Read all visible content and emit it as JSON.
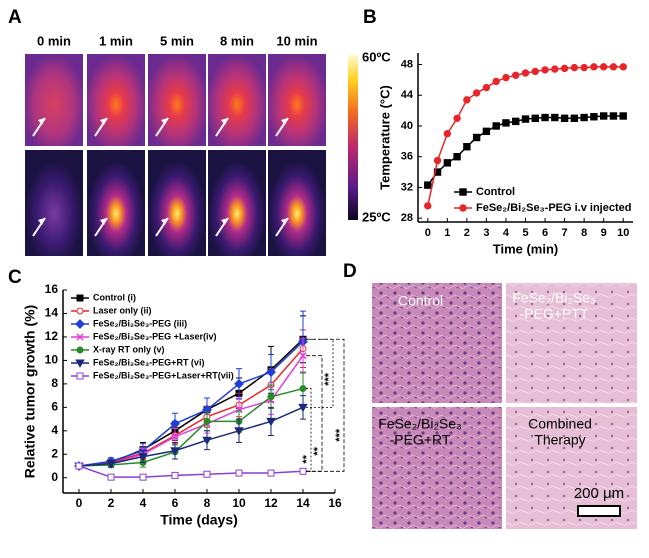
{
  "panel_labels": [
    "A",
    "B",
    "C",
    "D"
  ],
  "thermal": {
    "times": [
      "0 min",
      "1 min",
      "5 min",
      "8 min",
      "10 min"
    ],
    "scale_max": "60ºC",
    "scale_min": "25ºC"
  },
  "chart_data": [
    {
      "type": "line",
      "xlabel": "Time (min)",
      "ylabel": "Temperature (°C)",
      "x": [
        0,
        0.5,
        1,
        1.5,
        2,
        2.5,
        3,
        3.5,
        4,
        4.5,
        5,
        5.5,
        6,
        6.5,
        7,
        7.5,
        8,
        8.5,
        9,
        9.5,
        10
      ],
      "xlim": [
        -0.5,
        10.5
      ],
      "xticks": [
        0,
        1,
        2,
        3,
        4,
        5,
        6,
        7,
        8,
        9,
        10
      ],
      "ylim": [
        27.5,
        49.5
      ],
      "yticks": [
        28,
        32,
        36,
        40,
        44,
        48
      ],
      "legend": "lower right",
      "series": [
        {
          "name": "Control",
          "color": "#000000",
          "marker": "square",
          "values": [
            32.3,
            34.0,
            35.2,
            36.0,
            37.3,
            38.5,
            39.3,
            40.0,
            40.4,
            40.6,
            40.9,
            41.0,
            41.1,
            41.1,
            41.0,
            41.0,
            41.1,
            41.2,
            41.3,
            41.3,
            41.3
          ]
        },
        {
          "name": "FeSe₂/Bi₂Se₃-PEG i.v injected",
          "color": "#e8262a",
          "marker": "circle",
          "values": [
            29.6,
            35.5,
            39.0,
            41.0,
            43.4,
            44.3,
            45.0,
            45.8,
            46.3,
            46.6,
            46.9,
            47.1,
            47.3,
            47.4,
            47.5,
            47.6,
            47.6,
            47.7,
            47.7,
            47.7,
            47.7
          ]
        }
      ]
    },
    {
      "type": "line",
      "xlabel": "Time (days)",
      "ylabel": "Relative tumor growth (%)",
      "x": [
        0,
        2,
        4,
        6,
        8,
        10,
        12,
        14
      ],
      "xlim": [
        -1,
        16
      ],
      "xticks": [
        0,
        2,
        4,
        6,
        8,
        10,
        12,
        14,
        16
      ],
      "ylim": [
        -1.3,
        16
      ],
      "yticks": [
        0,
        2,
        4,
        6,
        8,
        10,
        12,
        14,
        16
      ],
      "legend": "upper left",
      "annotations": [
        "**",
        "**",
        "***",
        "***"
      ],
      "series": [
        {
          "name": "Control (i)",
          "color": "#000000",
          "marker": "square",
          "values": [
            1,
            1.3,
            2.4,
            4.0,
            5.8,
            7.2,
            9.2,
            11.8
          ],
          "errors": [
            0,
            0.3,
            0.6,
            0.8,
            1.0,
            1.3,
            2.0,
            2.0
          ]
        },
        {
          "name": "Laser only (ii)",
          "color": "#e8262a",
          "marker": "open-circle",
          "values": [
            1,
            1.3,
            2.1,
            3.6,
            5.2,
            6.2,
            7.9,
            11.0
          ],
          "errors": [
            0,
            0.3,
            0.5,
            0.7,
            0.9,
            1.0,
            1.4,
            1.6
          ]
        },
        {
          "name": "FeSe₂/Bi₂Se₃-PEG (iii)",
          "color": "#1f3fd6",
          "marker": "diamond",
          "values": [
            1,
            1.4,
            2.3,
            4.6,
            5.8,
            8.0,
            9.0,
            11.6
          ],
          "errors": [
            0,
            0.3,
            0.6,
            0.9,
            1.0,
            1.3,
            1.5,
            2.6
          ]
        },
        {
          "name": "FeSe₂/Bi₂Se₃-PEG +Laser(iv)",
          "color": "#e33fd8",
          "marker": "cross",
          "values": [
            1,
            1.2,
            2.0,
            3.5,
            4.6,
            5.8,
            6.6,
            10.4
          ],
          "errors": [
            0,
            0.3,
            0.5,
            0.7,
            0.8,
            1.0,
            1.2,
            1.5
          ]
        },
        {
          "name": "X-ray RT only (v)",
          "color": "#2a8a2a",
          "marker": "circle",
          "values": [
            1,
            1.1,
            1.3,
            2.2,
            4.8,
            4.8,
            6.9,
            7.6
          ],
          "errors": [
            0,
            0.2,
            0.4,
            0.6,
            0.8,
            0.9,
            1.0,
            1.4
          ]
        },
        {
          "name": "FeSe₂/Bi₂Se₃-PEG+RT (vi)",
          "color": "#1b2a7a",
          "marker": "triangle",
          "values": [
            1,
            1.2,
            1.8,
            2.3,
            3.2,
            4.0,
            4.8,
            6.0
          ],
          "errors": [
            0,
            0.3,
            0.5,
            0.7,
            0.8,
            1.0,
            1.2,
            1.0
          ]
        },
        {
          "name": "FeSe₂/Bi₂Se₃-PEG+Laser+RT(vii)",
          "color": "#8a3fd8",
          "marker": "open-square",
          "values": [
            1,
            0.05,
            0.05,
            0.2,
            0.3,
            0.4,
            0.4,
            0.55
          ],
          "errors": [
            0,
            0.05,
            0.05,
            0.1,
            0.1,
            0.1,
            0.1,
            0.1
          ]
        }
      ]
    }
  ],
  "histology": {
    "labels": [
      [
        "Control"
      ],
      [
        "FeSe₂/Bi₂Se₃",
        "-PEG+PTT"
      ],
      [
        "FeSe₂/Bi₂Se₃",
        "-PEG+RT"
      ],
      [
        "Combined",
        "Therapy"
      ]
    ],
    "scale_bar": "200 μm"
  }
}
